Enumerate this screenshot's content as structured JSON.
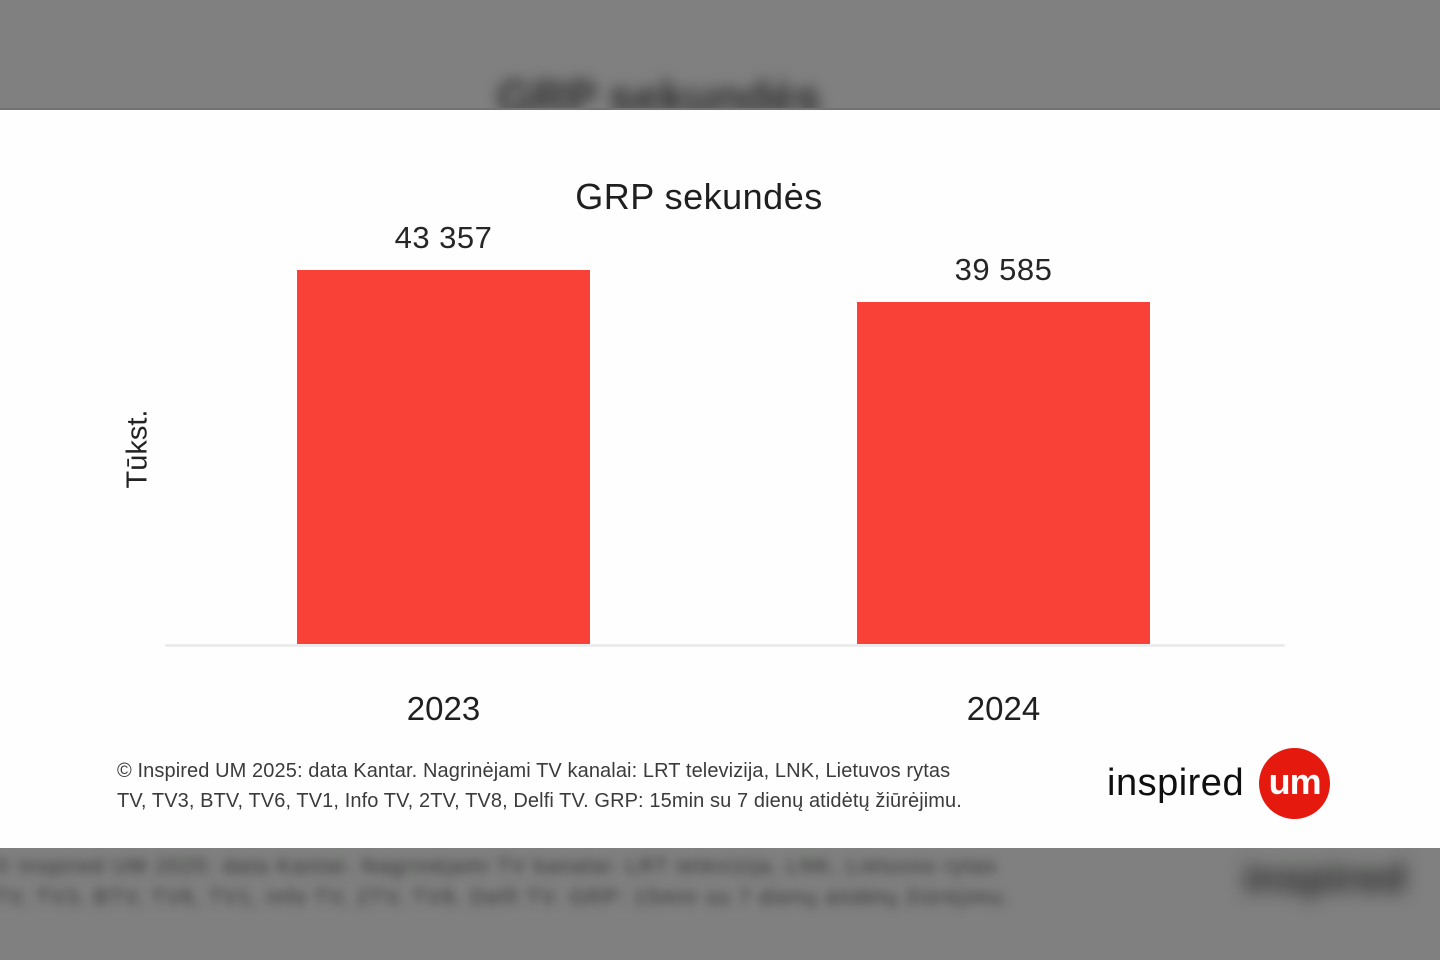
{
  "page": {
    "letterbox_color": "#7f807f",
    "panel_color": "#fefefe"
  },
  "chart_data": {
    "type": "bar",
    "title": "GRP sekundės",
    "ylabel": "Tūkst.",
    "xlabel": "",
    "categories": [
      "2023",
      "2024"
    ],
    "values": [
      43357,
      39585
    ],
    "value_labels": [
      "43 357",
      "39 585"
    ],
    "bar_color": "#f94138",
    "axis_line_color": "#ececec",
    "ylim": [
      0,
      43357
    ],
    "grid": false,
    "legend": false
  },
  "footer": {
    "source_lines": [
      "© Inspired UM 2025: data Kantar.  Nagrinėjami TV kanalai: LRT televizija, LNK, Lietuvos rytas",
      "TV, TV3, BTV, TV6, TV1, Info TV, 2TV, TV8, Delfi TV. GRP: 15min su 7 dienų atidėtų žiūrėjimu."
    ],
    "logo": {
      "text": "inspired",
      "badge_text": "um",
      "badge_color": "#e5190e"
    }
  }
}
